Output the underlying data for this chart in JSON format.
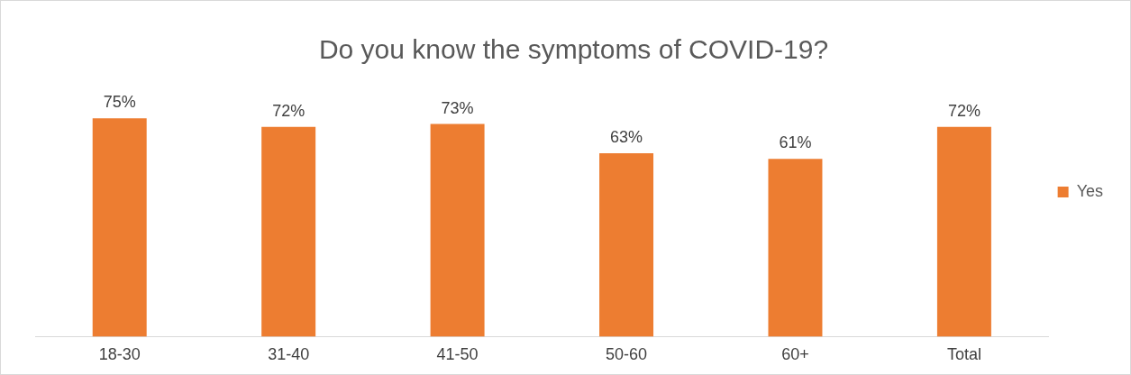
{
  "chart_data": {
    "type": "bar",
    "title": "Do you know the symptoms of COVID-19?",
    "categories": [
      "18-30",
      "31-40",
      "41-50",
      "50-60",
      "60+",
      "Total"
    ],
    "series": [
      {
        "name": "Yes",
        "color": "#ed7d31",
        "values": [
          75,
          72,
          73,
          63,
          61,
          72
        ],
        "value_labels": [
          "75%",
          "72%",
          "73%",
          "63%",
          "61%",
          "72%"
        ]
      }
    ],
    "legend": "right",
    "grid": false
  }
}
